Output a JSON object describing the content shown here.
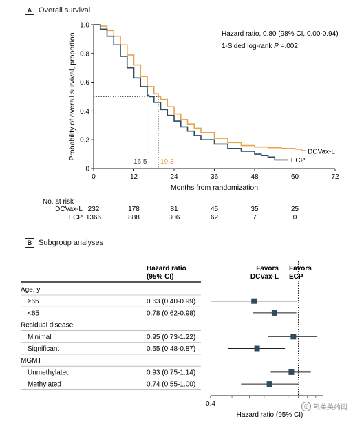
{
  "panelA": {
    "letter": "A",
    "title": "Overall survival"
  },
  "panelB": {
    "letter": "B",
    "title": "Subgroup analyses"
  },
  "chart_data": [
    {
      "type": "line",
      "title": "Overall survival",
      "xlabel": "Months from randomization",
      "ylabel": "Probability of overall survival, proportion",
      "xlim": [
        0,
        72
      ],
      "ylim": [
        0,
        1.0
      ],
      "xticks": [
        0,
        12,
        24,
        36,
        48,
        60,
        72
      ],
      "yticks": [
        0,
        0.2,
        0.4,
        0.6,
        0.8,
        1.0
      ],
      "ytick_labels": [
        "0",
        "0.2",
        "0.4",
        "0.6",
        "0.8",
        "1.0"
      ],
      "annotations": {
        "hazard_ratio": "Hazard ratio, 0.80 (98% CI, 0.00-0.94)",
        "logrank_prefix": "1-Sided log-rank ",
        "logrank_p": "P",
        "logrank_suffix": " =.002",
        "median_ecp": "16.5",
        "median_dcvax": "19.3",
        "median_y": 0.5
      },
      "series": [
        {
          "name": "DCVax-L",
          "color": "#e8a24a",
          "x": [
            0,
            2,
            4,
            6,
            8,
            10,
            12,
            14,
            16,
            18,
            19.3,
            20,
            22,
            24,
            26,
            28,
            30,
            32,
            36,
            40,
            44,
            48,
            52,
            56,
            60,
            62,
            63
          ],
          "y": [
            1.0,
            0.99,
            0.96,
            0.92,
            0.86,
            0.79,
            0.72,
            0.64,
            0.57,
            0.52,
            0.5,
            0.48,
            0.43,
            0.38,
            0.34,
            0.31,
            0.28,
            0.25,
            0.21,
            0.18,
            0.16,
            0.15,
            0.145,
            0.14,
            0.135,
            0.125,
            0.12
          ]
        },
        {
          "name": "ECP",
          "color": "#2f4b5e",
          "x": [
            0,
            2,
            4,
            6,
            8,
            10,
            12,
            14,
            16,
            16.5,
            18,
            20,
            22,
            24,
            26,
            28,
            30,
            32,
            36,
            40,
            44,
            48,
            50,
            52,
            54,
            58
          ],
          "y": [
            1.0,
            0.97,
            0.92,
            0.86,
            0.78,
            0.7,
            0.63,
            0.57,
            0.51,
            0.5,
            0.46,
            0.41,
            0.37,
            0.33,
            0.29,
            0.26,
            0.23,
            0.2,
            0.17,
            0.14,
            0.12,
            0.1,
            0.09,
            0.08,
            0.06,
            0.06
          ]
        }
      ],
      "at_risk": {
        "title": "No. at risk",
        "rows": [
          {
            "label": "DCVax-L",
            "values": [
              "232",
              "178",
              "81",
              "45",
              "35",
              "25"
            ]
          },
          {
            "label": "ECP",
            "values": [
              "1366",
              "888",
              "306",
              "62",
              "7",
              "0"
            ]
          }
        ]
      }
    },
    {
      "type": "scatter",
      "title": "Subgroup analyses",
      "xlabel": "Hazard ratio (95% CI)",
      "x_tick_label": "0.4",
      "xlim": [
        0.4,
        1.3
      ],
      "log_scale": true,
      "reference_line": 1.0,
      "marker_color": "#2f4b5e",
      "column_header": [
        "Hazard ratio",
        "(95% CI)"
      ],
      "favors_left": [
        "Favors",
        "DCVax-L"
      ],
      "favors_right": [
        "Favors",
        "ECP"
      ],
      "rows": [
        {
          "kind": "group",
          "label": "Age, y"
        },
        {
          "kind": "item",
          "label": "≥65",
          "text": "0.63 (0.40-0.99)",
          "hr": 0.63,
          "lo": 0.4,
          "hi": 0.99
        },
        {
          "kind": "item",
          "label": "<65",
          "text": "0.78 (0.62-0.98)",
          "hr": 0.78,
          "lo": 0.62,
          "hi": 0.98
        },
        {
          "kind": "group",
          "label": "Residual disease"
        },
        {
          "kind": "item",
          "label": "Minimal",
          "text": "0.95 (0.73-1.22)",
          "hr": 0.95,
          "lo": 0.73,
          "hi": 1.22
        },
        {
          "kind": "item",
          "label": "Significant",
          "text": "0.65 (0.48-0.87)",
          "hr": 0.65,
          "lo": 0.48,
          "hi": 0.87
        },
        {
          "kind": "group",
          "label": "MGMT"
        },
        {
          "kind": "item",
          "label": "Unmethylated",
          "text": "0.93 (0.75-1.14)",
          "hr": 0.93,
          "lo": 0.75,
          "hi": 1.14
        },
        {
          "kind": "item",
          "label": "Methylated",
          "text": "0.74 (0.55-1.00)",
          "hr": 0.74,
          "lo": 0.55,
          "hi": 1.0
        }
      ]
    }
  ],
  "watermark": {
    "text": "凯莱英药闻"
  }
}
